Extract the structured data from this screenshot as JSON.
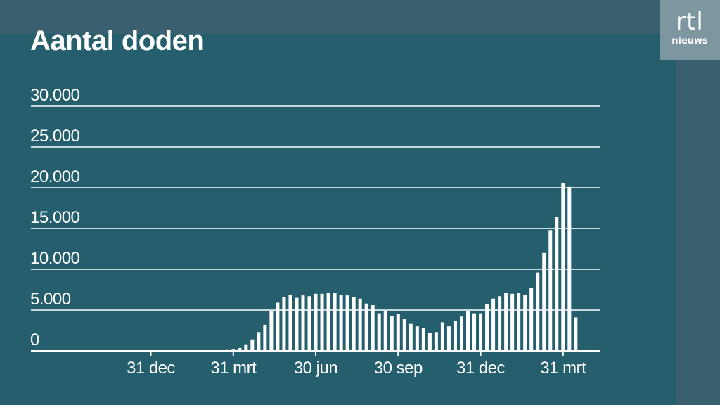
{
  "header": {
    "title": "Aantal doden"
  },
  "logo": {
    "mark": "rtl",
    "sub": "nieuws"
  },
  "colors": {
    "background": "#255f6e",
    "band": "#3a6070",
    "logo_bg": "#7d97a1",
    "bars": "#ffffff",
    "grid": "#ffffff"
  },
  "chart_data": {
    "type": "bar",
    "title": "Aantal doden",
    "xlabel": "",
    "ylabel": "",
    "ylim": [
      0,
      30000
    ],
    "yticks": [
      0,
      5000,
      10000,
      15000,
      20000,
      25000,
      30000
    ],
    "ytick_labels": [
      "0",
      "5.000",
      "10.000",
      "15.000",
      "20.000",
      "25.000",
      "30.000"
    ],
    "xticks": [
      {
        "label": "31 dec",
        "index": 0
      },
      {
        "label": "31 mrt",
        "index": 13
      },
      {
        "label": "30 jun",
        "index": 26
      },
      {
        "label": "30 sep",
        "index": 39
      },
      {
        "label": "31 dec",
        "index": 52
      },
      {
        "label": "31 mrt",
        "index": 65
      }
    ],
    "grid": true,
    "values": [
      0,
      0,
      0,
      0,
      0,
      0,
      0,
      0,
      0,
      0,
      0,
      0,
      100,
      150,
      350,
      800,
      1400,
      2300,
      3200,
      4900,
      5900,
      6600,
      6900,
      6500,
      6800,
      6700,
      7000,
      7000,
      7100,
      7100,
      6900,
      6800,
      6600,
      6400,
      5800,
      5600,
      4600,
      4900,
      4300,
      4500,
      3900,
      3300,
      3000,
      2800,
      2200,
      2300,
      3500,
      3000,
      3700,
      4200,
      4900,
      4600,
      4600,
      5700,
      6400,
      6700,
      7100,
      7000,
      7100,
      6900,
      7700,
      9600,
      12000,
      14800,
      16400,
      20600,
      20100,
      4100
    ]
  }
}
